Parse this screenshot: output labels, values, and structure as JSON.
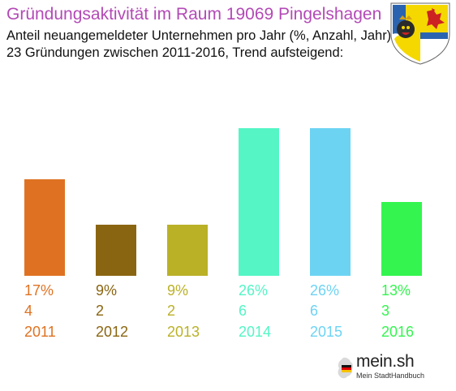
{
  "header": {
    "title": "Gründungsaktivität im Raum 19069 Pingelshagen",
    "subtitle_line1": "Anteil neuangemeldeter Unternehmen pro Jahr (%, Anzahl, Jahr)",
    "subtitle_line2": "23 Gründungen zwischen 2011-2016, Trend aufsteigend:"
  },
  "crest": {
    "icon": "coat-of-arms-icon",
    "colors": [
      "#2a64b0",
      "#f4d800",
      "#cc2222",
      "#ffffff"
    ]
  },
  "chart_data": {
    "type": "bar",
    "title": "Gründungsaktivität im Raum 19069 Pingelshagen",
    "categories": [
      "2011",
      "2012",
      "2013",
      "2014",
      "2015",
      "2016"
    ],
    "values": [
      17,
      9,
      9,
      26,
      26,
      13
    ],
    "value_labels": [
      "17%",
      "9%",
      "9%",
      "26%",
      "26%",
      "13%"
    ],
    "counts": [
      "4",
      "2",
      "2",
      "6",
      "6",
      "3"
    ],
    "colors": [
      "#df7222",
      "#8a6511",
      "#bab127",
      "#55f5c5",
      "#6dd3f3",
      "#34f54f"
    ],
    "unit": "%",
    "xlabel": "",
    "ylabel": "",
    "ylim": [
      0,
      26
    ],
    "grid": false,
    "legend": "none"
  },
  "brand": {
    "name": "mein.sh",
    "tagline": "Mein StadtHandbuch"
  }
}
